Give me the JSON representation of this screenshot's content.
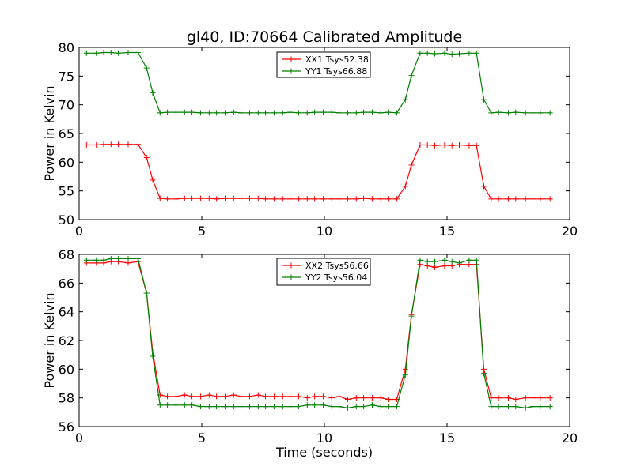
{
  "title": "gl40, ID:70664 Calibrated Amplitude",
  "chart_data": [
    {
      "type": "line",
      "title": "gl40, ID:70664 Calibrated Amplitude",
      "xlabel": "",
      "ylabel": "Power in Kelvin",
      "xlim": [
        0,
        20
      ],
      "ylim": [
        50,
        80
      ],
      "xticks": [
        "0",
        "5",
        "10",
        "15",
        "20"
      ],
      "yticks": [
        "50",
        "55",
        "60",
        "65",
        "70",
        "75",
        "80"
      ],
      "grid": false,
      "legend_position": "top-center",
      "x": [
        0.3,
        0.7,
        1.0,
        1.3,
        1.6,
        2.0,
        2.4,
        2.75,
        3.0,
        3.3,
        3.6,
        3.95,
        4.3,
        4.6,
        4.95,
        5.3,
        5.6,
        5.95,
        6.3,
        6.6,
        6.95,
        7.3,
        7.6,
        7.95,
        8.3,
        8.6,
        8.95,
        9.3,
        9.6,
        9.95,
        10.3,
        10.6,
        10.95,
        11.3,
        11.6,
        11.95,
        12.3,
        12.6,
        12.95,
        13.3,
        13.55,
        13.9,
        14.2,
        14.5,
        14.9,
        15.2,
        15.5,
        15.9,
        16.2,
        16.5,
        16.8,
        17.1,
        17.5,
        17.8,
        18.2,
        18.5,
        18.8,
        19.2
      ],
      "series": [
        {
          "name": "XX1 Tsys52.38",
          "color": "#ff0000",
          "values": [
            63.0,
            63.0,
            63.1,
            63.1,
            63.1,
            63.1,
            63.1,
            60.8,
            56.9,
            53.7,
            53.6,
            53.6,
            53.7,
            53.7,
            53.7,
            53.7,
            53.6,
            53.7,
            53.7,
            53.7,
            53.7,
            53.7,
            53.6,
            53.6,
            53.6,
            53.6,
            53.6,
            53.6,
            53.6,
            53.6,
            53.6,
            53.6,
            53.6,
            53.6,
            53.7,
            53.6,
            53.6,
            53.6,
            53.6,
            55.8,
            59.5,
            63.0,
            63.0,
            62.9,
            63.0,
            62.9,
            63.0,
            62.9,
            62.9,
            55.8,
            53.6,
            53.6,
            53.6,
            53.6,
            53.6,
            53.6,
            53.6,
            53.6
          ]
        },
        {
          "name": "YY1 Tsys66.88",
          "color": "#008000",
          "values": [
            79.0,
            79.0,
            79.1,
            79.1,
            79.0,
            79.1,
            79.1,
            76.4,
            72.1,
            68.6,
            68.7,
            68.7,
            68.7,
            68.7,
            68.6,
            68.6,
            68.6,
            68.6,
            68.7,
            68.6,
            68.6,
            68.6,
            68.6,
            68.6,
            68.6,
            68.7,
            68.6,
            68.6,
            68.7,
            68.7,
            68.7,
            68.6,
            68.6,
            68.6,
            68.7,
            68.7,
            68.6,
            68.7,
            68.6,
            70.9,
            75.1,
            79.0,
            79.0,
            78.9,
            79.0,
            78.8,
            78.9,
            79.0,
            79.0,
            70.9,
            68.6,
            68.7,
            68.6,
            68.7,
            68.6,
            68.6,
            68.6,
            68.6
          ]
        }
      ]
    },
    {
      "type": "line",
      "title": "",
      "xlabel": "Time (seconds)",
      "ylabel": "Power in Kelvin",
      "xlim": [
        0,
        20
      ],
      "ylim": [
        56,
        68
      ],
      "xticks": [
        "0",
        "5",
        "10",
        "15",
        "20"
      ],
      "yticks": [
        "56",
        "58",
        "60",
        "62",
        "64",
        "66",
        "68"
      ],
      "grid": false,
      "legend_position": "top-center",
      "x": [
        0.3,
        0.7,
        1.0,
        1.3,
        1.6,
        2.0,
        2.4,
        2.75,
        3.0,
        3.3,
        3.6,
        3.95,
        4.3,
        4.6,
        4.95,
        5.3,
        5.6,
        5.95,
        6.3,
        6.6,
        6.95,
        7.3,
        7.6,
        7.95,
        8.3,
        8.6,
        8.95,
        9.3,
        9.6,
        9.95,
        10.3,
        10.6,
        10.95,
        11.3,
        11.6,
        11.95,
        12.3,
        12.6,
        12.95,
        13.3,
        13.55,
        13.9,
        14.2,
        14.5,
        14.9,
        15.2,
        15.5,
        15.9,
        16.2,
        16.5,
        16.8,
        17.1,
        17.5,
        17.8,
        18.2,
        18.5,
        18.8,
        19.2
      ],
      "series": [
        {
          "name": "XX2 Tsys56.66",
          "color": "#ff0000",
          "values": [
            67.4,
            67.4,
            67.4,
            67.5,
            67.5,
            67.4,
            67.5,
            65.3,
            61.2,
            58.2,
            58.1,
            58.1,
            58.2,
            58.1,
            58.1,
            58.2,
            58.1,
            58.1,
            58.2,
            58.1,
            58.1,
            58.2,
            58.1,
            58.1,
            58.1,
            58.1,
            58.1,
            58.0,
            58.1,
            58.1,
            58.0,
            58.1,
            57.9,
            58.0,
            58.0,
            58.0,
            58.0,
            57.9,
            57.9,
            60.0,
            63.8,
            67.3,
            67.2,
            67.1,
            67.2,
            67.2,
            67.3,
            67.3,
            67.3,
            60.0,
            58.0,
            58.0,
            58.0,
            57.9,
            58.0,
            58.0,
            58.0,
            58.0
          ]
        },
        {
          "name": "YY2 Tsys56.04",
          "color": "#008000",
          "values": [
            67.6,
            67.6,
            67.6,
            67.7,
            67.7,
            67.7,
            67.7,
            65.3,
            60.9,
            57.5,
            57.5,
            57.5,
            57.5,
            57.5,
            57.4,
            57.4,
            57.4,
            57.4,
            57.4,
            57.4,
            57.4,
            57.4,
            57.4,
            57.4,
            57.4,
            57.4,
            57.4,
            57.5,
            57.5,
            57.5,
            57.4,
            57.4,
            57.3,
            57.4,
            57.4,
            57.5,
            57.4,
            57.4,
            57.4,
            59.6,
            63.7,
            67.6,
            67.5,
            67.5,
            67.6,
            67.5,
            67.4,
            67.6,
            67.6,
            59.7,
            57.4,
            57.4,
            57.4,
            57.4,
            57.3,
            57.4,
            57.4,
            57.4
          ]
        }
      ]
    }
  ]
}
